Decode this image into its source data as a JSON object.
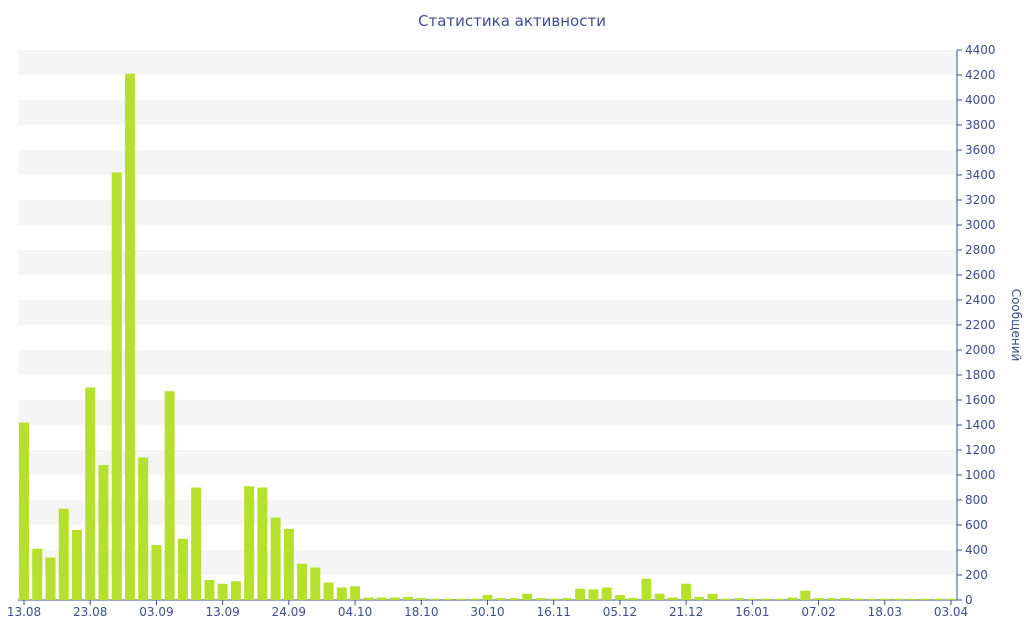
{
  "chart_data": {
    "type": "bar",
    "title": "Статистика активности",
    "y_label": "Сообщений",
    "color": "#b5e12d",
    "categories": [
      "13.08",
      null,
      null,
      null,
      null,
      "23.08",
      null,
      null,
      null,
      null,
      "03.09",
      null,
      null,
      null,
      null,
      "13.09",
      null,
      null,
      null,
      null,
      "24.09",
      null,
      null,
      null,
      null,
      "04.10",
      null,
      null,
      null,
      null,
      "18.10",
      null,
      null,
      null,
      null,
      "30.10",
      null,
      null,
      null,
      null,
      "16.11",
      null,
      null,
      null,
      null,
      "05.12",
      null,
      null,
      null,
      null,
      "21.12",
      null,
      null,
      null,
      null,
      "16.01",
      null,
      null,
      null,
      null,
      "07.02",
      null,
      null,
      null,
      null,
      "18.03",
      null,
      null,
      null,
      null,
      "03.04"
    ],
    "values": [
      1420,
      410,
      340,
      730,
      560,
      1700,
      1080,
      3420,
      4210,
      1140,
      440,
      1670,
      490,
      900,
      160,
      130,
      150,
      910,
      900,
      660,
      570,
      290,
      260,
      140,
      100,
      110,
      20,
      20,
      20,
      25,
      15,
      10,
      10,
      10,
      10,
      40,
      15,
      15,
      50,
      15,
      10,
      15,
      90,
      85,
      100,
      40,
      15,
      170,
      50,
      20,
      130,
      25,
      50,
      10,
      15,
      10,
      10,
      10,
      20,
      75,
      15,
      15,
      15,
      10,
      10,
      10,
      10,
      10,
      10,
      10,
      10
    ],
    "ylim": [
      0,
      4400
    ],
    "yticks": [
      0,
      200,
      400,
      600,
      800,
      1000,
      1200,
      1400,
      1600,
      1800,
      2000,
      2200,
      2400,
      2600,
      2800,
      3000,
      3200,
      3400,
      3600,
      3800,
      4000,
      4200,
      4400
    ],
    "grid": true
  }
}
